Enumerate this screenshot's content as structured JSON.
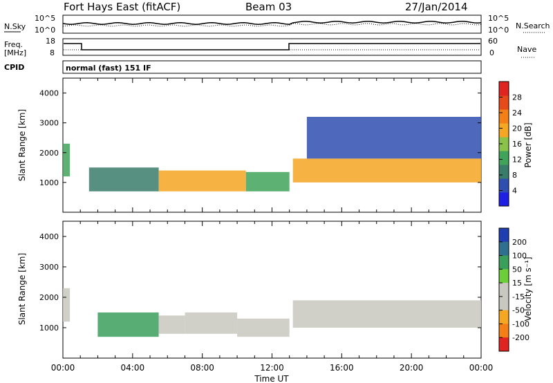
{
  "header": {
    "title": "Fort Hays East (fitACF)",
    "beam": "Beam 03",
    "date": "27/Jan/2014"
  },
  "noise_panel": {
    "left_label": "N.Sky",
    "right_label": "N.Search",
    "left_ticks": [
      "10^5",
      "10^0"
    ],
    "right_ticks": [
      "10^5",
      "10^0"
    ]
  },
  "freq_panel": {
    "left_label_line1": "Freq.",
    "left_label_line2": "[MHz]",
    "right_label": "Nave",
    "left_ticks": [
      "18",
      "8"
    ],
    "right_ticks": [
      "60",
      "0"
    ],
    "cpid_label": "CPID",
    "mode_text": "normal (fast) 151 IF"
  },
  "chart_data": [
    {
      "type": "heatmap",
      "title": "",
      "xlabel": "Time UT",
      "ylabel": "Slant Range [km]",
      "x_ticks": [
        "00:00",
        "04:00",
        "08:00",
        "12:00",
        "16:00",
        "20:00",
        "00:00"
      ],
      "y_ticks": [
        "1000",
        "2000",
        "3000",
        "4000"
      ],
      "ylim": [
        0,
        4500
      ],
      "colorbar_label": "Power [dB]",
      "colorbar_ticks": [
        "4",
        "8",
        "12",
        "16",
        "20",
        "24",
        "28"
      ],
      "colorbar_colors": [
        "#1f1fe6",
        "#2f4fb0",
        "#3a7c6a",
        "#3fa35a",
        "#8bc34a",
        "#f5a623",
        "#f57f17",
        "#e64a19",
        "#e0241f"
      ],
      "regions": [
        {
          "t_start": 0.0,
          "t_end": 0.4,
          "range_low": 1200,
          "range_high": 2300,
          "value": 14
        },
        {
          "t_start": 1.5,
          "t_end": 5.5,
          "range_low": 700,
          "range_high": 1500,
          "value": 10
        },
        {
          "t_start": 5.5,
          "t_end": 10.5,
          "range_low": 700,
          "range_high": 1400,
          "value": 22
        },
        {
          "t_start": 10.5,
          "t_end": 13.0,
          "range_low": 700,
          "range_high": 1350,
          "value": 12
        },
        {
          "t_start": 13.2,
          "t_end": 24.0,
          "range_low": 1000,
          "range_high": 1800,
          "value": 20
        },
        {
          "t_start": 14.0,
          "t_end": 24.0,
          "range_low": 1800,
          "range_high": 3200,
          "value": 6
        }
      ]
    },
    {
      "type": "heatmap",
      "title": "",
      "xlabel": "Time UT",
      "ylabel": "Slant Range [km]",
      "x_ticks": [
        "00:00",
        "04:00",
        "08:00",
        "12:00",
        "16:00",
        "20:00",
        "00:00"
      ],
      "y_ticks": [
        "1000",
        "2000",
        "3000",
        "4000"
      ],
      "ylim": [
        0,
        4500
      ],
      "colorbar_label": "Velocity [m s⁻¹]",
      "colorbar_ticks": [
        "200",
        "100",
        "50",
        "15",
        "-15",
        "-50",
        "-100",
        "-200"
      ],
      "colorbar_colors": [
        "#1f3fb0",
        "#2f6f8f",
        "#3a9f5a",
        "#6ccf3a",
        "#c8c8c0",
        "#c8c8c0",
        "#f5a623",
        "#f57f17",
        "#e0241f"
      ],
      "regions": [
        {
          "t_start": 0.0,
          "t_end": 0.4,
          "range_low": 1200,
          "range_high": 2300,
          "value": 0
        },
        {
          "t_start": 2.0,
          "t_end": 5.5,
          "range_low": 700,
          "range_high": 1500,
          "value": 60
        },
        {
          "t_start": 5.5,
          "t_end": 7.0,
          "range_low": 800,
          "range_high": 1400,
          "value": 0
        },
        {
          "t_start": 7.0,
          "t_end": 10.0,
          "range_low": 800,
          "range_high": 1500,
          "value": -40
        },
        {
          "t_start": 10.0,
          "t_end": 13.0,
          "range_low": 700,
          "range_high": 1300,
          "value": 0
        },
        {
          "t_start": 13.2,
          "t_end": 24.0,
          "range_low": 1000,
          "range_high": 1900,
          "value": 0
        }
      ]
    }
  ]
}
